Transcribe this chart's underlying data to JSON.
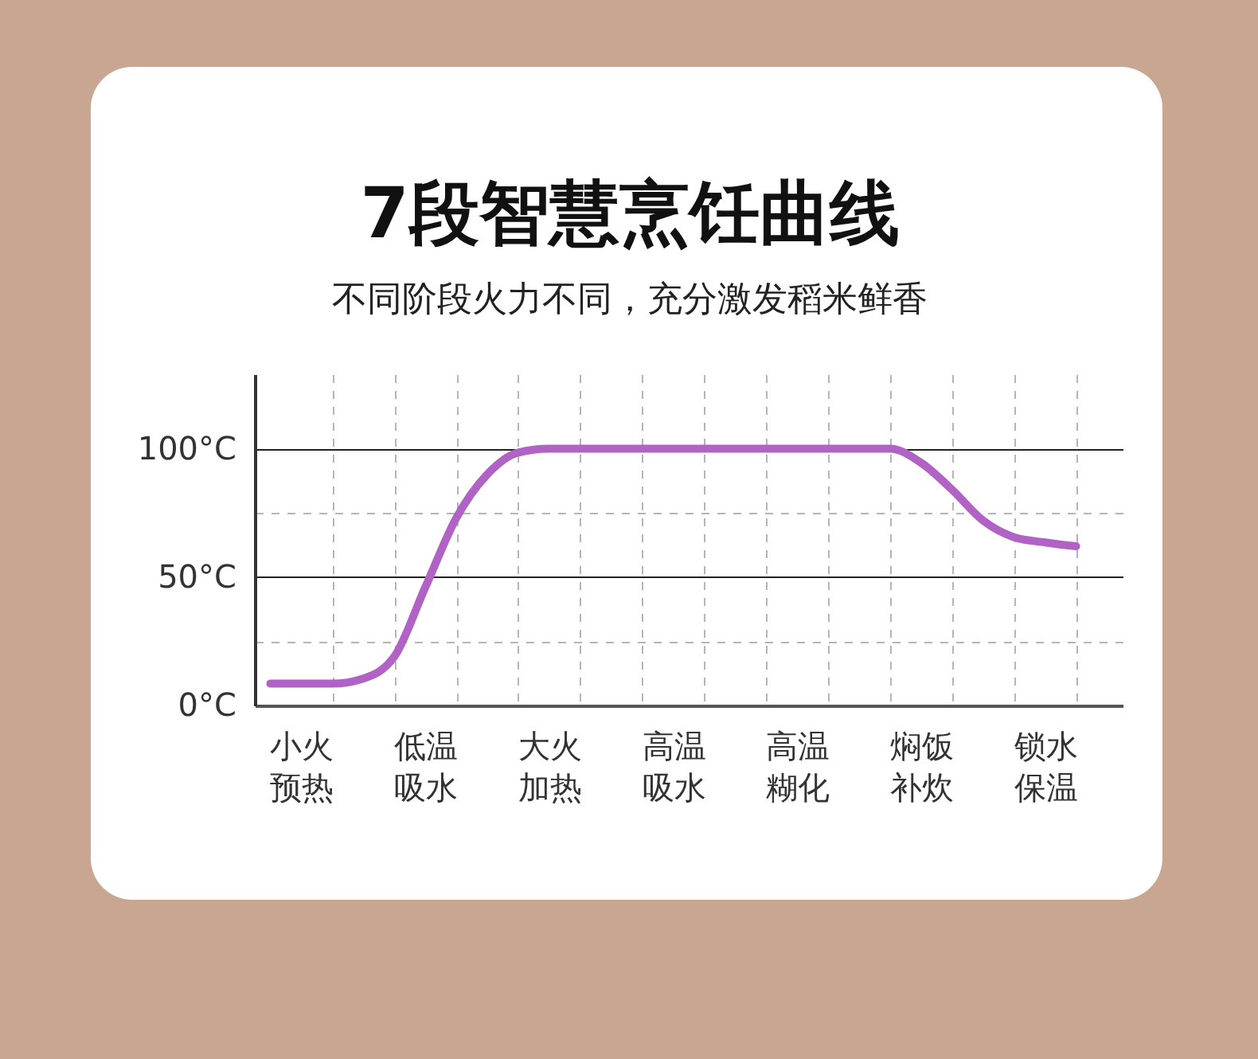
{
  "chart_data": {
    "type": "line",
    "title": "7段智慧烹饪曲线",
    "subtitle": "不同阶段火力不同，充分激发稻米鲜香",
    "categories": [
      null,
      "小火预热",
      null,
      null,
      null,
      "低温吸水",
      null,
      null,
      null,
      "大火加热",
      null,
      null,
      null,
      "高温吸水",
      null,
      null,
      null,
      "高温糊化",
      null,
      null,
      null,
      "焖饭补炊",
      null,
      null,
      null,
      "锁水保温",
      null,
      null
    ],
    "ylim": [
      0,
      129
    ],
    "yticks": [
      {
        "value": 0,
        "label": "0°C"
      },
      {
        "value": 25,
        "label": null
      },
      {
        "value": 50,
        "label": "50°C"
      },
      {
        "value": 75,
        "label": null
      },
      {
        "value": 100,
        "label": "100°C"
      }
    ],
    "grid": true,
    "marker": "none",
    "line_style": "solid",
    "series": [
      {
        "color": "#b063c4",
        "values": [
          8.5,
          8.5,
          8.5,
          10.5,
          19,
          46,
          73,
          90,
          98.5,
          100,
          100,
          100,
          100,
          100,
          100,
          100,
          100,
          100,
          100,
          100,
          100,
          94.5,
          84,
          72,
          65.5,
          63.5,
          62,
          null
        ]
      }
    ]
  }
}
